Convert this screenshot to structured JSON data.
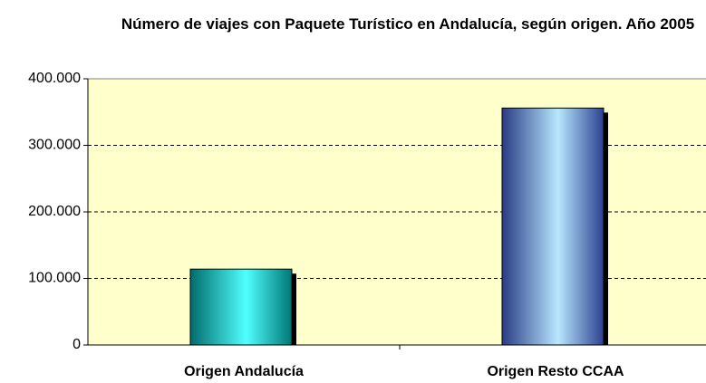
{
  "chart_data": {
    "type": "bar",
    "title": "Número de viajes con Paquete Turístico en Andalucía, según origen. Año 2005",
    "categories": [
      "Origen Andalucía",
      "Origen Resto CCAA"
    ],
    "values": [
      114000,
      356000
    ],
    "colors": [
      "#00c4c4",
      "#4a6cf0"
    ],
    "ylim": [
      0,
      400000
    ],
    "yticks": [
      0,
      {
        "value": 100000,
        "label": "100.000"
      },
      {
        "value": 200000,
        "label": "200.000"
      },
      {
        "value": 300000,
        "label": "300.000"
      },
      {
        "value": 400000,
        "label": "400.000"
      }
    ],
    "grid": true
  }
}
